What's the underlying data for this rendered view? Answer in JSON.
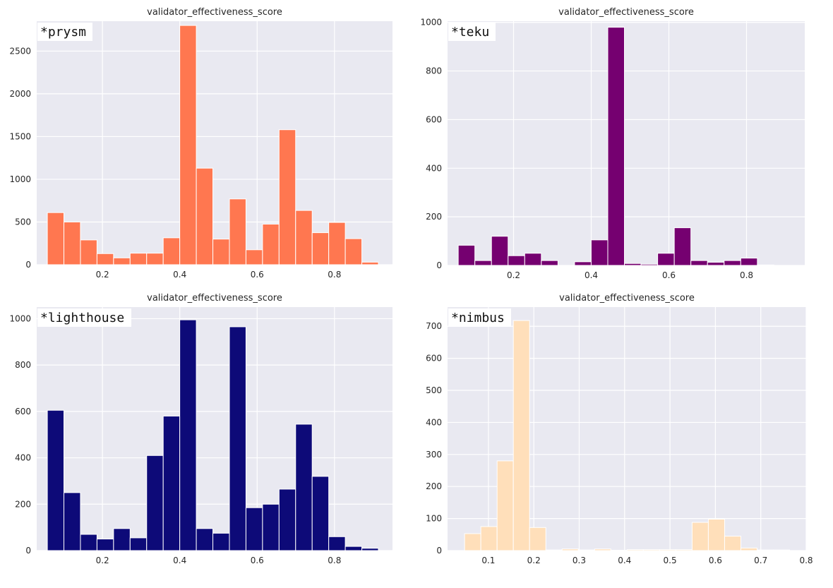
{
  "chart_data": [
    {
      "type": "bar",
      "panel": "top-left",
      "title": "validator_effectiveness_score",
      "label": "*prysm",
      "color": "#ff7750",
      "xlim": [
        0.03,
        0.95
      ],
      "ylim": [
        0,
        2850
      ],
      "xticks": [
        0.2,
        0.4,
        0.6,
        0.8
      ],
      "yticks": [
        0,
        500,
        1000,
        1500,
        2000,
        2500
      ],
      "bin_start": 0.0575,
      "bin_width": 0.0428,
      "values": [
        610,
        500,
        290,
        130,
        80,
        135,
        135,
        315,
        2800,
        1130,
        300,
        770,
        175,
        475,
        1580,
        635,
        375,
        495,
        305,
        30
      ]
    },
    {
      "type": "bar",
      "panel": "top-right",
      "title": "validator_effectiveness_score",
      "label": "*teku",
      "color": "#750070",
      "xlim": [
        0.03,
        0.95
      ],
      "ylim": [
        0,
        1005
      ],
      "xticks": [
        0.2,
        0.4,
        0.6,
        0.8
      ],
      "yticks": [
        0,
        200,
        400,
        600,
        800,
        1000
      ],
      "bin_start": 0.0575,
      "bin_width": 0.0428,
      "values": [
        83,
        20,
        120,
        40,
        50,
        20,
        0,
        15,
        105,
        980,
        8,
        5,
        50,
        155,
        20,
        13,
        20,
        30,
        2,
        0
      ]
    },
    {
      "type": "bar",
      "panel": "bottom-left",
      "title": "validator_effectiveness_score",
      "label": "*lighthouse",
      "color": "#0d0a78",
      "xlim": [
        0.03,
        0.95
      ],
      "ylim": [
        0,
        1050
      ],
      "xticks": [
        0.2,
        0.4,
        0.6,
        0.8
      ],
      "yticks": [
        0,
        200,
        400,
        600,
        800,
        1000
      ],
      "bin_start": 0.0575,
      "bin_width": 0.0428,
      "values": [
        605,
        250,
        70,
        50,
        95,
        55,
        410,
        580,
        995,
        95,
        75,
        965,
        185,
        200,
        265,
        545,
        320,
        60,
        18,
        10
      ]
    },
    {
      "type": "bar",
      "panel": "bottom-right",
      "title": "validator_effectiveness_score",
      "label": "*nimbus",
      "color": "#ffdfba",
      "xlim": [
        0.01,
        0.8
      ],
      "ylim": [
        0,
        760
      ],
      "xticks": [
        0.1,
        0.2,
        0.3,
        0.4,
        0.5,
        0.6,
        0.7,
        0.8
      ],
      "yticks": [
        0,
        100,
        200,
        300,
        400,
        500,
        600,
        700
      ],
      "bin_start": 0.0475,
      "bin_width": 0.0358,
      "values": [
        53,
        75,
        280,
        718,
        72,
        2,
        5,
        2,
        5,
        1,
        3,
        3,
        3,
        3,
        88,
        98,
        45,
        8,
        2,
        2
      ]
    }
  ]
}
